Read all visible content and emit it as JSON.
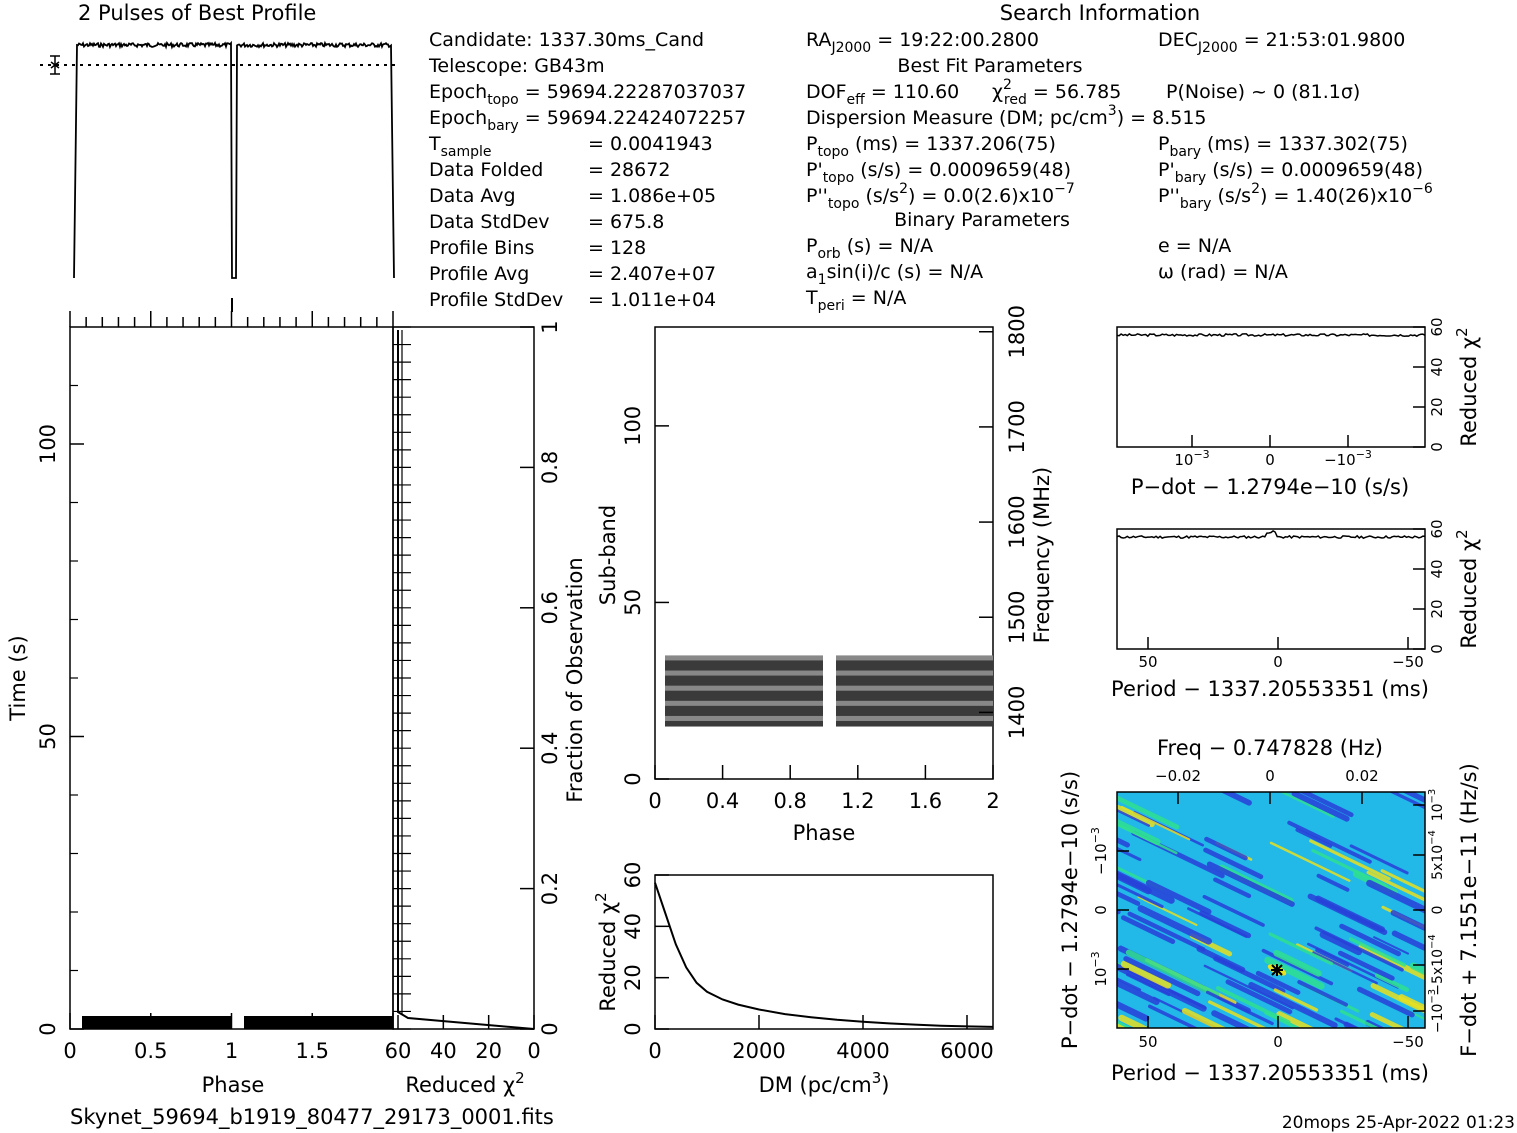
{
  "figure": {
    "profile_title": "2 Pulses of Best Profile",
    "search_title": "Search Information",
    "footer_file": "Skynet_59694_b1919_80477_29173_0001.fits",
    "footer_stamp": "20mops 25-Apr-2022 01:23"
  },
  "info": {
    "candidate": "Candidate:   1337.30ms_Cand",
    "telescope": "Telescope:   GB43m",
    "epoch_topo": "Epoch",
    "epoch_topo_sub": "topo",
    "epoch_topo_val": " = 59694.22287037037",
    "epoch_bary": "Epoch",
    "epoch_bary_sub": "bary",
    "epoch_bary_val": " = 59694.22424072257",
    "rows": [
      {
        "label": "T",
        "sub": "sample",
        "value": "=   0.0041943"
      },
      {
        "label": "Data Folded",
        "sub": "",
        "value": "=   28672"
      },
      {
        "label": "Data Avg",
        "sub": "",
        "value": "=   1.086e+05"
      },
      {
        "label": "Data StdDev",
        "sub": "",
        "value": "=   675.8"
      },
      {
        "label": "Profile Bins",
        "sub": "",
        "value": "=   128"
      },
      {
        "label": "Profile Avg",
        "sub": "",
        "value": "=   2.407e+07"
      },
      {
        "label": "Profile StdDev",
        "sub": "",
        "value": "=   1.011e+04"
      }
    ]
  },
  "search": {
    "ra_label": "RA",
    "ra_sub": "J2000",
    "ra_val": " = 19:22:00.2800",
    "dec_label": "DEC",
    "dec_sub": "J2000",
    "dec_val": " = 21:53:01.9800",
    "best_fit_title": "Best Fit Parameters",
    "dof_label": "DOF",
    "dof_sub": "eff",
    "dof_val": " = 110.60",
    "chi_label": "χ",
    "chi_sup": "2",
    "chi_sub": "red",
    "chi_val": " = 56.785",
    "pnoise": "P(Noise) ~ 0    (81.1σ)",
    "dm_text": "Dispersion Measure (DM; pc/cm",
    "dm_sup": "3",
    "dm_val": ") = 8.515",
    "p_topo": "(ms) =   1337.206(75)",
    "p_bary": "(ms) =   1337.302(75)",
    "pd_topo": "(s/s) =   0.0009659(48)",
    "pd_bary": "(s/s) =   0.0009659(48)",
    "pdd_topo": "(s/s",
    "pdd_topo_tail": ") = 0.0(2.6)x10",
    "pdd_topo_exp": "−7",
    "pdd_bary": "(s/s",
    "pdd_bary_tail": ") =   1.40(26)x10",
    "pdd_bary_exp": "−6",
    "binary_title": "Binary Parameters",
    "porb": "(s) = N/A",
    "ecc": "e = N/A",
    "asini": "sin(i)/c (s) = N/A",
    "omega": "ω (rad) = N/A",
    "tperi": " = N/A",
    "p_letter": "P",
    "pd_letter": "P'",
    "pdd_letter": "P''",
    "topo_sub": "topo",
    "bary_sub": "bary",
    "orb_sub": "orb",
    "peri_label": "T",
    "peri_sub": "peri",
    "a_label": "a",
    "a_sub": "1"
  },
  "chart_data": [
    {
      "type": "line",
      "title": "2 Pulses of Best Profile",
      "x": [
        0.0,
        0.97,
        0.985,
        1.0,
        1.015,
        1.03,
        2.0
      ],
      "y": [
        1.0,
        1.0,
        0.0,
        0.0,
        0.0,
        1.0,
        1.0
      ],
      "xlim": [
        0,
        2
      ],
      "note_level": "dotted line at ~0.93"
    },
    {
      "type": "heatmap",
      "xlabel": "Phase",
      "ylabel": "Time (s)",
      "xticks": [
        "0",
        "0.5",
        "1",
        "1.5"
      ],
      "yticks": [
        "0",
        "50",
        "100"
      ],
      "xlim": [
        0,
        2
      ],
      "ylim": [
        0,
        120
      ]
    },
    {
      "type": "line",
      "xlabel": "Reduced χ",
      "xlabel_sup": "2",
      "ylabel": "Fraction of Observation",
      "xticks": [
        "60",
        "40",
        "20",
        "0"
      ],
      "yticks": [
        "0",
        "0.2",
        "0.4",
        "0.6",
        "0.8",
        "1"
      ],
      "xlim": [
        60,
        0
      ],
      "ylim": [
        0,
        1
      ]
    },
    {
      "type": "heatmap",
      "xlabel": "Phase",
      "ylabel": "Sub-band",
      "y2label": "Frequency (MHz)",
      "xticks": [
        "0",
        "0.4",
        "0.8",
        "1.2",
        "1.6",
        "2"
      ],
      "yticks": [
        "0",
        "50",
        "100"
      ],
      "y2ticks": [
        "1400",
        "1500",
        "1600",
        "1700",
        "1800"
      ],
      "band_subbands": [
        15,
        35
      ]
    },
    {
      "type": "line",
      "xlabel": "DM (pc/cm",
      "xlabel_sup": "3",
      "xlabel_tail": ")",
      "ylabel": "Reduced χ",
      "ylabel_sup": "2",
      "x": [
        0,
        200,
        400,
        600,
        800,
        1000,
        1300,
        1600,
        2000,
        2500,
        3000,
        3500,
        4000,
        4500,
        5000,
        5500,
        6000,
        6500
      ],
      "y": [
        57,
        45,
        33,
        24,
        18,
        14.5,
        11.5,
        9.5,
        7.6,
        5.8,
        4.6,
        3.6,
        2.8,
        2.2,
        1.7,
        1.3,
        1.0,
        0.8
      ],
      "xticks": [
        "0",
        "2000",
        "4000",
        "6000"
      ],
      "yticks": [
        "0",
        "20",
        "40",
        "60"
      ],
      "xlim": [
        0,
        6500
      ],
      "ylim": [
        0,
        60
      ]
    },
    {
      "type": "line",
      "xlabel": "P−dot − 1.2794e−10 (s/s)",
      "ylabel": "Reduced χ",
      "ylabel_sup": "2",
      "xticks": [
        "10",
        "0",
        "−10"
      ],
      "xtick_exp": "−3",
      "yticks": [
        "0",
        "20",
        "40",
        "60"
      ],
      "ylim": [
        0,
        60
      ],
      "level": 56
    },
    {
      "type": "line",
      "xlabel": "Period − 1337.20553351 (ms)",
      "ylabel": "Reduced χ",
      "ylabel_sup": "2",
      "xticks": [
        "50",
        "0",
        "−50"
      ],
      "yticks": [
        "0",
        "20",
        "40",
        "60"
      ],
      "ylim": [
        0,
        60
      ],
      "level": 56
    },
    {
      "type": "heatmap",
      "title": "Freq − 0.747828 (Hz)",
      "xlabel": "Period − 1337.20553351 (ms)",
      "ylabel": "P−dot − 1.2794e−10 (s/s)",
      "y2label": "F−dot + 7.1551e−11 (Hz/s)",
      "xticks": [
        "50",
        "0",
        "−50"
      ],
      "x2ticks": [
        "−0.02",
        "0",
        "0.02"
      ],
      "yticks": [
        "10",
        "0",
        "−10"
      ],
      "ytick_exp": "−3",
      "y2ticks": [
        "−10",
        "−5x10",
        "0",
        "5x10",
        "10"
      ],
      "y2tick_exp": [
        "−3",
        "−4",
        "",
        "−4",
        "−3"
      ]
    }
  ],
  "colors": {
    "ink": "#000000",
    "band_dark": "#3a3a3a",
    "band_light": "#888888",
    "map_bg": "#22b8e8",
    "map_blue": "#2840d8",
    "map_green": "#30e090",
    "map_yellow": "#e8e020"
  }
}
